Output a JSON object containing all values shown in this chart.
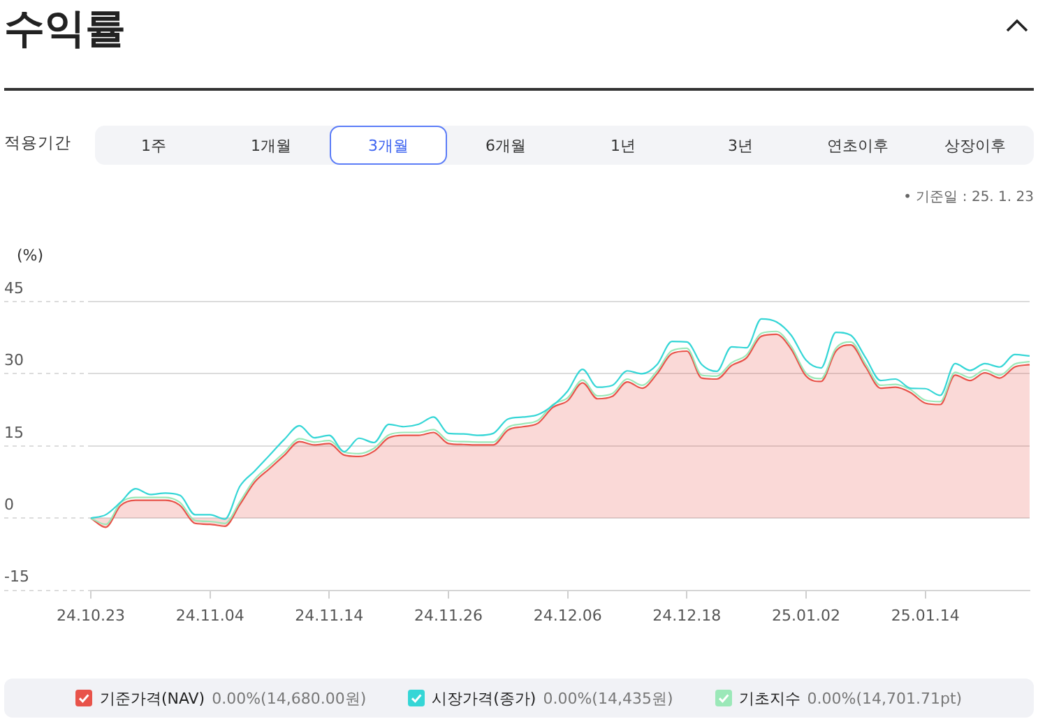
{
  "chart_data": {
    "type": "line",
    "title": "수익률",
    "ylabel": "(%)",
    "categories": [
      "24.10.23",
      null,
      null,
      null,
      null,
      null,
      null,
      null,
      "24.11.04",
      null,
      null,
      null,
      null,
      null,
      null,
      null,
      "24.11.14",
      null,
      null,
      null,
      null,
      null,
      null,
      null,
      "24.11.26",
      null,
      null,
      null,
      null,
      null,
      null,
      null,
      "24.12.06",
      null,
      null,
      null,
      null,
      null,
      null,
      null,
      "24.12.18",
      null,
      null,
      null,
      null,
      null,
      null,
      null,
      "25.01.02",
      null,
      null,
      null,
      null,
      null,
      null,
      null,
      "25.01.14",
      null,
      null,
      null,
      null,
      null,
      null,
      null
    ],
    "series": [
      {
        "name": "기준가격(NAV)",
        "color": "#e8534a",
        "type": "area",
        "values": [
          0,
          -1.9,
          2.6,
          3.7,
          3.7,
          3.7,
          2.6,
          -1.1,
          -1.3,
          -1.7,
          2.8,
          7.5,
          10.3,
          13.1,
          15.9,
          15.2,
          15.5,
          13.1,
          12.8,
          13.9,
          16.7,
          17.2,
          17.2,
          17.8,
          15.5,
          15.3,
          15.2,
          15.2,
          18.3,
          19.0,
          19.7,
          23.0,
          24.4,
          28.1,
          24.8,
          25.3,
          28.3,
          27.0,
          30.0,
          34.2,
          34.7,
          29.1,
          28.9,
          31.7,
          33.3,
          37.8,
          38.2,
          35.1,
          29.5,
          28.4,
          34.7,
          36.0,
          31.4,
          27.0,
          27.2,
          26.1,
          23.9,
          23.6,
          29.7,
          28.6,
          30.2,
          29.1,
          31.4,
          31.9
        ]
      },
      {
        "name": "시장가격(종가)",
        "color": "#35d6d6",
        "values": [
          0,
          0.7,
          3.3,
          6.1,
          4.9,
          5.2,
          4.7,
          0.7,
          0.7,
          -0.2,
          6.6,
          9.8,
          13.1,
          16.4,
          19.2,
          16.7,
          17.2,
          13.8,
          16.6,
          15.7,
          19.5,
          19.0,
          19.5,
          21.0,
          17.6,
          17.5,
          17.2,
          17.6,
          20.6,
          21.0,
          21.5,
          23.4,
          26.4,
          30.9,
          27.2,
          27.6,
          30.6,
          30.0,
          31.9,
          36.7,
          36.6,
          31.9,
          30.5,
          35.6,
          35.4,
          41.4,
          40.8,
          38.0,
          32.8,
          31.2,
          38.6,
          38.0,
          33.3,
          28.6,
          28.9,
          27.0,
          26.9,
          25.5,
          32.1,
          30.7,
          32.1,
          31.4,
          34.0,
          33.7
        ]
      },
      {
        "name": "기초지수",
        "color": "#9be8b8",
        "values": [
          0,
          -1.3,
          3.2,
          4.3,
          4.3,
          4.3,
          3.2,
          -0.5,
          -0.7,
          -1.1,
          3.4,
          8.1,
          10.9,
          13.7,
          16.5,
          15.8,
          16.1,
          13.7,
          13.4,
          14.5,
          17.3,
          17.8,
          17.8,
          18.4,
          16.1,
          15.9,
          15.8,
          15.8,
          18.9,
          19.6,
          20.3,
          23.6,
          25.0,
          28.7,
          25.4,
          25.9,
          28.9,
          27.6,
          30.6,
          34.8,
          35.3,
          29.7,
          29.5,
          32.3,
          33.9,
          38.4,
          38.8,
          35.7,
          30.1,
          29.0,
          35.3,
          36.6,
          32.0,
          27.6,
          27.8,
          26.7,
          24.5,
          24.2,
          30.3,
          29.2,
          30.8,
          29.7,
          32.0,
          32.5
        ]
      }
    ],
    "ylim": [
      -15,
      45
    ],
    "yticks": [
      -15,
      0,
      15,
      30,
      45
    ],
    "grid": "y",
    "legend": "bottom",
    "marker": "none",
    "annotations": [
      "적용기간",
      "1주",
      "1개월",
      "3개월",
      "6개월",
      "1년",
      "3년",
      "연초이후",
      "상장이후",
      "• 기준일 : 25. 1. 23",
      "0.00%(14,680.00원)",
      "0.00%(14,435원)",
      "0.00%(14,701.71pt)"
    ]
  }
}
